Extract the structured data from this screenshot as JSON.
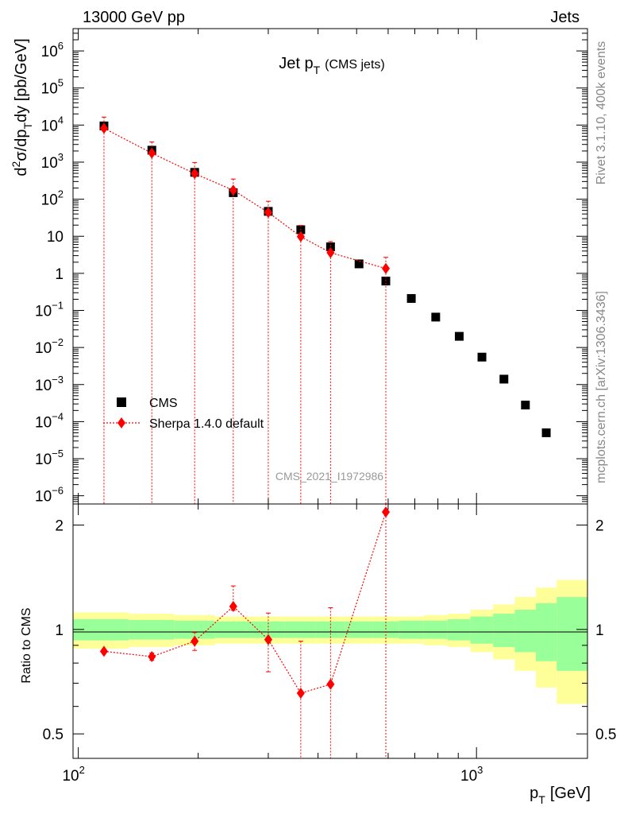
{
  "header": {
    "left": "13000 GeV pp",
    "right": "Jets"
  },
  "side_labels": {
    "rivet": "Rivet 3.1.10,  400k events",
    "mcplots": "mcplots.cern.ch [arXiv:1306.3436]"
  },
  "watermark": "CMS_2021_I1972986",
  "chart_data": [
    {
      "type": "scatter",
      "panel": "main",
      "title": {
        "main": "Jet p",
        "sub": "T",
        "suffix": "(CMS jets)"
      },
      "ylabel": {
        "d": "d",
        "sup2": "2",
        "sigma": "σ/dp",
        "subT": "T",
        "rest": "dy [pb/GeV]"
      },
      "yscale": "log",
      "xscale": "log",
      "xlim": [
        97,
        1900
      ],
      "ylim": [
        6e-07,
        4000000.0
      ],
      "yticks": [
        {
          "v": 1000000.0,
          "base": "10",
          "exp": "6"
        },
        {
          "v": 100000.0,
          "base": "10",
          "exp": "5"
        },
        {
          "v": 10000.0,
          "base": "10",
          "exp": "4"
        },
        {
          "v": 1000.0,
          "base": "10",
          "exp": "3"
        },
        {
          "v": 100.0,
          "base": "10",
          "exp": "2"
        },
        {
          "v": 10,
          "base": "10",
          "exp": ""
        },
        {
          "v": 1,
          "base": "1",
          "exp": ""
        },
        {
          "v": 0.1,
          "base": "10",
          "exp": "−1"
        },
        {
          "v": 0.01,
          "base": "10",
          "exp": "−2"
        },
        {
          "v": 0.001,
          "base": "10",
          "exp": "−3"
        },
        {
          "v": 0.0001,
          "base": "10",
          "exp": "−4"
        },
        {
          "v": 1e-05,
          "base": "10",
          "exp": "−5"
        },
        {
          "v": 1e-06,
          "base": "10",
          "exp": "−6"
        }
      ],
      "legend": {
        "position": "bottom-left",
        "entries": [
          "CMS",
          "Sherpa 1.4.0 default"
        ]
      },
      "series": [
        {
          "name": "CMS",
          "color": "#000000",
          "marker": "square",
          "x": [
            116,
            153,
            196,
            245,
            300,
            362,
            430,
            507,
            592,
            686,
            790,
            905,
            1032,
            1172,
            1327,
            1497
          ],
          "y": [
            9500,
            2100,
            530,
            150,
            47,
            15,
            5.2,
            1.8,
            0.62,
            0.21,
            0.066,
            0.02,
            0.0055,
            0.0014,
            0.00028,
            5e-05
          ]
        },
        {
          "name": "Sherpa 1.4.0 default",
          "color": "#ff0000",
          "marker": "diamond",
          "x": [
            116,
            153,
            196,
            245,
            300,
            362,
            430,
            592
          ],
          "y": [
            8200,
            1750,
            490,
            175,
            44,
            9.8,
            3.6,
            1.35
          ],
          "yerr_lo": [
            8200,
            1750,
            490,
            175,
            44,
            9.8,
            3.6,
            1.35
          ],
          "yerr_hi": [
            8200,
            1750,
            490,
            175,
            44,
            9.8,
            3.6,
            1.35
          ]
        }
      ]
    },
    {
      "type": "scatter",
      "panel": "ratio",
      "ylabel": "Ratio to CMS",
      "xlabel": {
        "p": "p",
        "subT": "T",
        "unit": "[GeV]"
      },
      "xscale": "log",
      "xlim": [
        97,
        1900
      ],
      "ylim": [
        0.425,
        2.3
      ],
      "yticks": [
        {
          "v": 0.5,
          "label": "0.5"
        },
        {
          "v": 1,
          "label": "1"
        },
        {
          "v": 2,
          "label": "2"
        }
      ],
      "xticks": [
        {
          "v": 100,
          "base": "10",
          "exp": "2"
        },
        {
          "v": 1000,
          "base": "10",
          "exp": "3"
        }
      ],
      "bands": {
        "edges": [
          97,
          134,
          174,
          220,
          272,
          330,
          395,
          468,
          548,
          638,
          737,
          846,
          966,
          1101,
          1248,
          1410,
          1590,
          1900
        ],
        "yellow": [
          0.12,
          0.11,
          0.1,
          0.09,
          0.09,
          0.09,
          0.09,
          0.09,
          0.09,
          0.09,
          0.1,
          0.11,
          0.14,
          0.18,
          0.24,
          0.32,
          0.39
        ],
        "green": [
          0.07,
          0.065,
          0.06,
          0.055,
          0.055,
          0.055,
          0.055,
          0.055,
          0.055,
          0.06,
          0.06,
          0.07,
          0.09,
          0.11,
          0.14,
          0.19,
          0.24
        ]
      },
      "series": [
        {
          "name": "Sherpa 1.4.0 default",
          "color": "#ff0000",
          "marker": "diamond",
          "x": [
            116,
            153,
            196,
            245,
            300,
            362,
            430,
            592
          ],
          "y": [
            0.865,
            0.835,
            0.925,
            1.165,
            0.935,
            0.655,
            0.695,
            2.18
          ],
          "err_lo": [
            0.01,
            0.02,
            0.055,
            0.03,
            0.18,
            0.33,
            0.34,
            1.8
          ],
          "err_hi": [
            0.01,
            0.02,
            0.055,
            0.17,
            0.18,
            0.27,
            0.46,
            1.8
          ]
        }
      ]
    }
  ]
}
